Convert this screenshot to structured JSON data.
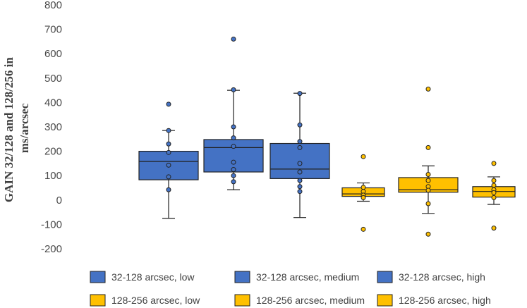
{
  "chart_data": {
    "type": "box",
    "title": "",
    "xlabel": "",
    "ylabel_lines": [
      "GAIN 32/128 and 128/256 in",
      "ms/arcsec"
    ],
    "ylim": [
      -200,
      800
    ],
    "yticks": [
      -200,
      -100,
      0,
      100,
      200,
      300,
      400,
      500,
      600,
      700,
      800
    ],
    "grid": false,
    "legend_position": "bottom",
    "colors": {
      "blue": "#4472c4",
      "yellow": "#ffc000",
      "stroke": "#222222"
    },
    "series": [
      {
        "name": "32-128 arcsec, low",
        "color": "blue",
        "whisker_low": -75,
        "q1": 83,
        "median": 158,
        "q3": 200,
        "whisker_high": 285,
        "points": [
          393,
          285,
          230,
          195,
          143,
          95,
          42
        ]
      },
      {
        "name": "32-128 arcsec, medium",
        "color": "blue",
        "whisker_low": 42,
        "q1": 115,
        "median": 215,
        "q3": 248,
        "whisker_high": 450,
        "points": [
          660,
          452,
          300,
          255,
          220,
          155,
          125,
          100,
          75
        ]
      },
      {
        "name": "32-128 arcsec, high",
        "color": "blue",
        "whisker_low": -72,
        "q1": 88,
        "median": 127,
        "q3": 232,
        "whisker_high": 438,
        "points": [
          437,
          308,
          240,
          215,
          150,
          115,
          80,
          55,
          35
        ]
      },
      {
        "name": "128-256 arcsec, low",
        "color": "yellow",
        "whisker_low": -5,
        "q1": 15,
        "median": 25,
        "q3": 50,
        "whisker_high": 70,
        "points": [
          178,
          52,
          35,
          20,
          10,
          -120
        ]
      },
      {
        "name": "128-256 arcsec, medium",
        "color": "yellow",
        "whisker_low": -55,
        "q1": 32,
        "median": 42,
        "q3": 92,
        "whisker_high": 140,
        "points": [
          455,
          215,
          105,
          80,
          55,
          40,
          -15,
          -140
        ]
      },
      {
        "name": "128-256 arcsec, high",
        "color": "yellow",
        "whisker_low": -18,
        "q1": 12,
        "median": 35,
        "q3": 55,
        "whisker_high": 95,
        "points": [
          150,
          80,
          60,
          42,
          30,
          10,
          -115
        ]
      }
    ]
  }
}
